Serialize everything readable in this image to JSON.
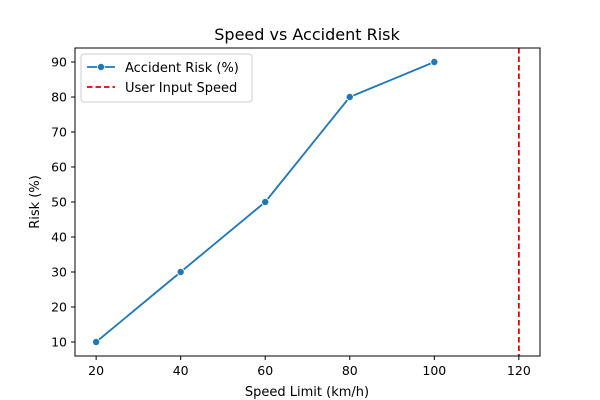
{
  "chart_data": {
    "type": "line",
    "title": "Speed vs Accident Risk",
    "xlabel": "Speed Limit (km/h)",
    "ylabel": "Risk (%)",
    "xlim": [
      15,
      125
    ],
    "ylim": [
      6,
      94
    ],
    "xticks": [
      20,
      40,
      60,
      80,
      100,
      120
    ],
    "yticks": [
      10,
      20,
      30,
      40,
      50,
      60,
      70,
      80,
      90
    ],
    "grid": false,
    "legend_position": "top-left",
    "series": [
      {
        "name": "Accident Risk (%)",
        "color": "#1f77b4",
        "marker": "circle",
        "x": [
          20,
          40,
          60,
          80,
          100
        ],
        "y": [
          10,
          30,
          50,
          80,
          90
        ]
      }
    ],
    "reference_lines": [
      {
        "name": "User Input Speed",
        "orientation": "vertical",
        "x": 120,
        "color": "#e00000",
        "style": "dashed"
      }
    ]
  }
}
